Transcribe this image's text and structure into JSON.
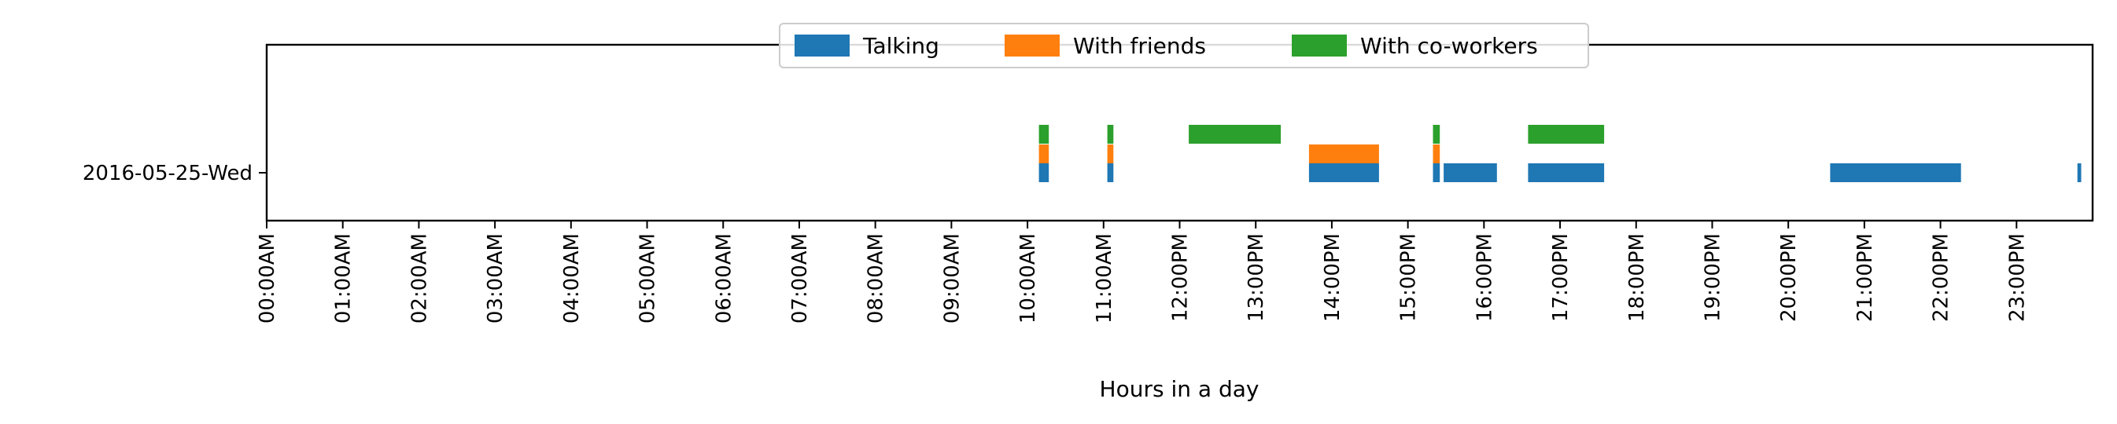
{
  "chart_data": {
    "type": "bar",
    "orientation": "horizontal-timeline",
    "title": "",
    "xlabel": "Hours in a day",
    "ylabel": "",
    "xlim": [
      0,
      24
    ],
    "x_tick_labels": [
      "00:00AM",
      "01:00AM",
      "02:00AM",
      "03:00AM",
      "04:00AM",
      "05:00AM",
      "06:00AM",
      "07:00AM",
      "08:00AM",
      "09:00AM",
      "10:00AM",
      "11:00AM",
      "12:00PM",
      "13:00PM",
      "14:00PM",
      "15:00PM",
      "16:00PM",
      "17:00PM",
      "18:00PM",
      "19:00PM",
      "20:00PM",
      "21:00PM",
      "22:00PM",
      "23:00PM"
    ],
    "categories": [
      "2016-05-25-Wed"
    ],
    "grid": false,
    "legend_position": "top-center",
    "series": [
      {
        "name": "Talking",
        "color": "#1f77b4",
        "intervals": [
          [
            10.15,
            10.28
          ],
          [
            11.05,
            11.13
          ],
          [
            13.7,
            14.62
          ],
          [
            15.33,
            15.42
          ],
          [
            15.47,
            16.17
          ],
          [
            16.58,
            17.58
          ],
          [
            20.55,
            22.27
          ],
          [
            23.8,
            23.85
          ]
        ]
      },
      {
        "name": "With friends",
        "color": "#ff7f0e",
        "intervals": [
          [
            10.15,
            10.28
          ],
          [
            11.05,
            11.13
          ],
          [
            13.7,
            14.62
          ],
          [
            15.33,
            15.42
          ]
        ]
      },
      {
        "name": "With co-workers",
        "color": "#2ca02c",
        "intervals": [
          [
            10.15,
            10.28
          ],
          [
            11.05,
            11.13
          ],
          [
            12.12,
            13.33
          ],
          [
            15.33,
            15.42
          ],
          [
            16.58,
            17.58
          ]
        ]
      }
    ]
  }
}
